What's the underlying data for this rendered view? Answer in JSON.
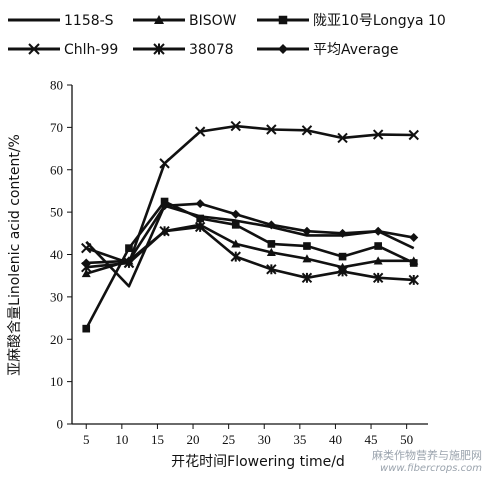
{
  "chart_data": {
    "type": "line",
    "xlabel": "开花时间Flowering time/d",
    "ylabel": "亚麻酸含量Linolenic acid content/%",
    "xlim": [
      3,
      53
    ],
    "ylim": [
      0,
      80
    ],
    "xticks": [
      5,
      10,
      15,
      20,
      25,
      30,
      35,
      40,
      45,
      50
    ],
    "yticks": [
      0,
      10,
      20,
      30,
      40,
      50,
      60,
      70,
      80
    ],
    "x": [
      5,
      11,
      16,
      21,
      26,
      31,
      36,
      41,
      46,
      51
    ],
    "grid": false,
    "legend_position": "top",
    "series": [
      {
        "name": "1158-S",
        "marker": "none",
        "values": [
          43,
          32.5,
          51.5,
          49,
          48,
          46.5,
          44.5,
          44.5,
          45.5,
          41.5
        ]
      },
      {
        "name": "BISOW",
        "marker": "triangle",
        "values": [
          35.5,
          38.5,
          45.5,
          47,
          42.5,
          40.5,
          39,
          37,
          38.5,
          38.5
        ]
      },
      {
        "name": "陇亚10号Longya 10",
        "marker": "square",
        "values": [
          22.5,
          41.5,
          52.5,
          48.5,
          47,
          42.5,
          42,
          39.5,
          42,
          38
        ]
      },
      {
        "name": "Chlh-99",
        "marker": "x",
        "values": [
          41.5,
          38,
          61.5,
          69,
          70.3,
          69.5,
          69.3,
          67.5,
          68.3,
          68.2
        ]
      },
      {
        "name": "38078",
        "marker": "asterisk",
        "values": [
          37,
          38,
          45.5,
          46.5,
          39.5,
          36.5,
          34.5,
          36,
          34.5,
          34
        ]
      },
      {
        "name": "平均Average",
        "marker": "diamond",
        "values": [
          38,
          38.5,
          51.5,
          52,
          49.5,
          47,
          45.5,
          45,
          45.5,
          44
        ]
      }
    ]
  },
  "watermark": {
    "line1": "麻类作物营养与施肥网",
    "line2": "www.fibercrops.com"
  }
}
